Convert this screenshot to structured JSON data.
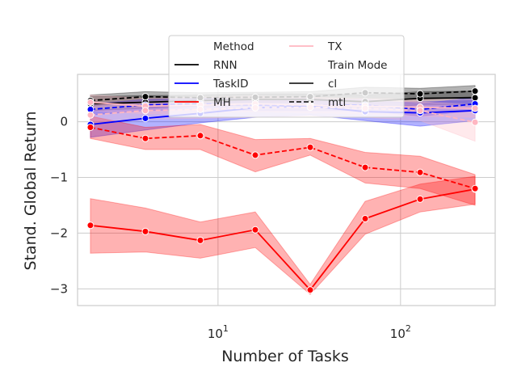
{
  "chart_data": {
    "type": "line",
    "xlabel": "Number of Tasks",
    "ylabel": "Stand. Global Return",
    "x_scale": "log",
    "xlim": [
      1.7,
      330
    ],
    "ylim": [
      -3.3,
      0.85
    ],
    "grid": true,
    "legend_position": "top-center",
    "x_ticks": [
      {
        "value": 10,
        "base": "10",
        "exp": "1"
      },
      {
        "value": 100,
        "base": "10",
        "exp": "2"
      }
    ],
    "y_ticks": [
      {
        "value": 0,
        "label": "0"
      },
      {
        "value": -1,
        "label": "−1"
      },
      {
        "value": -2,
        "label": "−2"
      },
      {
        "value": -3,
        "label": "−3"
      }
    ],
    "x": [
      2,
      4,
      8,
      16,
      32,
      64,
      128,
      256
    ],
    "legend": {
      "method_title": "Method",
      "mode_title": "Train Mode",
      "methods": [
        {
          "label": "RNN",
          "color": "#000000"
        },
        {
          "label": "TaskID",
          "color": "#0000ff"
        },
        {
          "label": "MH",
          "color": "#ff0000"
        },
        {
          "label": "TX",
          "color": "#ffb6c1"
        }
      ],
      "modes": [
        {
          "label": "cl",
          "dash": "solid"
        },
        {
          "label": "mtl",
          "dash": "dashed"
        }
      ]
    },
    "series": [
      {
        "method": "RNN",
        "mode": "cl",
        "color": "#000000",
        "values": [
          0.32,
          0.35,
          0.38,
          0.4,
          0.4,
          0.36,
          0.42,
          0.43
        ],
        "lower": [
          0.2,
          0.24,
          0.28,
          0.3,
          0.3,
          0.24,
          0.3,
          0.31
        ],
        "upper": [
          0.45,
          0.47,
          0.48,
          0.5,
          0.5,
          0.48,
          0.54,
          0.55
        ]
      },
      {
        "method": "RNN",
        "mode": "mtl",
        "color": "#000000",
        "values": [
          0.38,
          0.45,
          0.43,
          0.44,
          0.45,
          0.52,
          0.5,
          0.55
        ],
        "lower": [
          0.28,
          0.36,
          0.34,
          0.35,
          0.36,
          0.42,
          0.4,
          0.45
        ],
        "upper": [
          0.48,
          0.54,
          0.52,
          0.53,
          0.54,
          0.62,
          0.6,
          0.65
        ]
      },
      {
        "method": "TaskID",
        "mode": "cl",
        "color": "#0000ff",
        "values": [
          -0.05,
          0.06,
          0.15,
          0.25,
          0.28,
          0.18,
          0.16,
          0.2
        ],
        "lower": [
          -0.28,
          -0.15,
          -0.02,
          0.08,
          0.12,
          0.02,
          -0.08,
          0.02
        ],
        "upper": [
          0.2,
          0.26,
          0.32,
          0.4,
          0.42,
          0.34,
          0.36,
          0.38
        ]
      },
      {
        "method": "TaskID",
        "mode": "mtl",
        "color": "#0000ff",
        "values": [
          0.22,
          0.3,
          0.32,
          0.3,
          0.3,
          0.3,
          0.22,
          0.32
        ],
        "lower": [
          0.12,
          0.2,
          0.22,
          0.2,
          0.2,
          0.2,
          0.1,
          0.2
        ],
        "upper": [
          0.32,
          0.4,
          0.42,
          0.4,
          0.4,
          0.4,
          0.32,
          0.44
        ]
      },
      {
        "method": "MH",
        "mode": "cl",
        "color": "#ff0000",
        "values": [
          -1.86,
          -1.97,
          -2.13,
          -1.94,
          -3.02,
          -1.74,
          -1.39,
          -1.21
        ],
        "lower": [
          -2.36,
          -2.34,
          -2.45,
          -2.26,
          -3.1,
          -2.02,
          -1.62,
          -1.48
        ],
        "upper": [
          -1.38,
          -1.55,
          -1.8,
          -1.62,
          -2.92,
          -1.43,
          -1.12,
          -0.98
        ]
      },
      {
        "method": "MH",
        "mode": "mtl",
        "color": "#ff0000",
        "values": [
          -0.1,
          -0.3,
          -0.25,
          -0.6,
          -0.46,
          -0.82,
          -0.91,
          -1.2
        ],
        "lower": [
          -0.3,
          -0.5,
          -0.5,
          -0.9,
          -0.6,
          -1.1,
          -1.2,
          -1.5
        ],
        "upper": [
          0.1,
          -0.1,
          -0.05,
          -0.32,
          -0.3,
          -0.55,
          -0.62,
          -0.95
        ]
      },
      {
        "method": "TX",
        "mode": "cl",
        "color": "#ffb6c1",
        "values": [
          0.35,
          0.28,
          0.3,
          0.32,
          0.3,
          0.28,
          0.26,
          0.24
        ],
        "lower": [
          0.2,
          0.14,
          0.16,
          0.18,
          0.16,
          0.14,
          0.1,
          0.08
        ],
        "upper": [
          0.48,
          0.42,
          0.44,
          0.46,
          0.44,
          0.42,
          0.4,
          0.4
        ]
      },
      {
        "method": "TX",
        "mode": "mtl",
        "color": "#ffb6c1",
        "values": [
          0.12,
          0.2,
          0.22,
          0.25,
          0.26,
          0.24,
          0.2,
          -0.01
        ],
        "lower": [
          -0.05,
          0.04,
          0.06,
          0.08,
          0.1,
          0.08,
          0.02,
          -0.35
        ],
        "upper": [
          0.3,
          0.36,
          0.38,
          0.4,
          0.42,
          0.4,
          0.36,
          0.3
        ]
      }
    ]
  }
}
